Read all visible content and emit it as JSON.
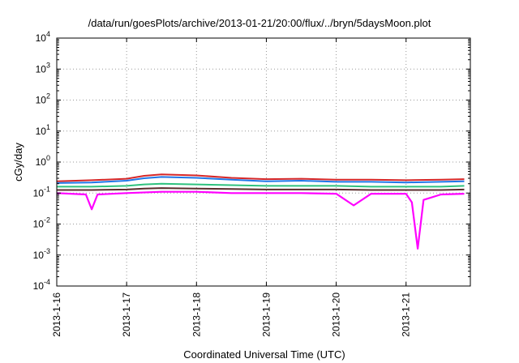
{
  "chart_data": {
    "type": "line",
    "title": "/data/run/goesPlots/archive/2013-01-21/20:00/flux/../bryn/5daysMoon.plot",
    "xlabel": "Coordinated Universal Time (UTC)",
    "ylabel": "cGy/day",
    "y_scale": "log",
    "ylim": [
      0.0001,
      10000
    ],
    "y_ticks": [
      {
        "value": 0.0001,
        "mantissa": "10",
        "exp": "-4"
      },
      {
        "value": 0.001,
        "mantissa": "10",
        "exp": "-3"
      },
      {
        "value": 0.01,
        "mantissa": "10",
        "exp": "-2"
      },
      {
        "value": 0.1,
        "mantissa": "10",
        "exp": "-1"
      },
      {
        "value": 1,
        "mantissa": "10",
        "exp": "0"
      },
      {
        "value": 10,
        "mantissa": "10",
        "exp": "1"
      },
      {
        "value": 100,
        "mantissa": "10",
        "exp": "2"
      },
      {
        "value": 1000,
        "mantissa": "10",
        "exp": "3"
      },
      {
        "value": 10000,
        "mantissa": "10",
        "exp": "4"
      }
    ],
    "xlim": [
      "2013-01-16",
      "2013-01-21 20:00"
    ],
    "x_ticks": [
      "2013-1-16",
      "2013-1-17",
      "2013-1-18",
      "2013-1-19",
      "2013-1-20",
      "2013-1-21"
    ],
    "grid": true,
    "series": [
      {
        "color": "#d62728",
        "x": [
          "2013-01-16 00:00",
          "2013-01-16 12:00",
          "2013-01-17 00:00",
          "2013-01-17 06:00",
          "2013-01-17 12:00",
          "2013-01-18 00:00",
          "2013-01-18 12:00",
          "2013-01-19 00:00",
          "2013-01-19 12:00",
          "2013-01-20 00:00",
          "2013-01-20 12:00",
          "2013-01-21 00:00",
          "2013-01-21 12:00",
          "2013-01-21 20:00"
        ],
        "values": [
          0.24,
          0.26,
          0.29,
          0.36,
          0.4,
          0.37,
          0.31,
          0.28,
          0.29,
          0.27,
          0.27,
          0.26,
          0.27,
          0.28
        ]
      },
      {
        "color": "#1f77e8",
        "x": [
          "2013-01-16 00:00",
          "2013-01-16 12:00",
          "2013-01-17 00:00",
          "2013-01-17 06:00",
          "2013-01-17 12:00",
          "2013-01-18 00:00",
          "2013-01-18 12:00",
          "2013-01-19 00:00",
          "2013-01-19 12:00",
          "2013-01-20 00:00",
          "2013-01-20 12:00",
          "2013-01-21 00:00",
          "2013-01-21 12:00",
          "2013-01-21 20:00"
        ],
        "values": [
          0.21,
          0.22,
          0.25,
          0.3,
          0.33,
          0.31,
          0.27,
          0.24,
          0.25,
          0.23,
          0.23,
          0.22,
          0.23,
          0.24
        ]
      },
      {
        "color": "#2ec27e",
        "x": [
          "2013-01-16 00:00",
          "2013-01-16 12:00",
          "2013-01-17 00:00",
          "2013-01-17 06:00",
          "2013-01-17 12:00",
          "2013-01-18 00:00",
          "2013-01-18 12:00",
          "2013-01-19 00:00",
          "2013-01-19 12:00",
          "2013-01-20 00:00",
          "2013-01-20 12:00",
          "2013-01-21 00:00",
          "2013-01-21 12:00",
          "2013-01-21 20:00"
        ],
        "values": [
          0.16,
          0.16,
          0.17,
          0.19,
          0.2,
          0.19,
          0.18,
          0.17,
          0.17,
          0.17,
          0.16,
          0.16,
          0.16,
          0.17
        ]
      },
      {
        "color": "#5a2d2d",
        "x": [
          "2013-01-16 00:00",
          "2013-01-16 12:00",
          "2013-01-17 00:00",
          "2013-01-17 06:00",
          "2013-01-17 12:00",
          "2013-01-18 00:00",
          "2013-01-18 12:00",
          "2013-01-19 00:00",
          "2013-01-19 12:00",
          "2013-01-20 00:00",
          "2013-01-20 12:00",
          "2013-01-21 00:00",
          "2013-01-21 12:00",
          "2013-01-21 20:00"
        ],
        "values": [
          0.125,
          0.125,
          0.13,
          0.14,
          0.145,
          0.14,
          0.135,
          0.13,
          0.13,
          0.13,
          0.125,
          0.125,
          0.125,
          0.13
        ]
      },
      {
        "color": "#ff00ff",
        "x": [
          "2013-01-16 00:00",
          "2013-01-16 10:00",
          "2013-01-16 12:00",
          "2013-01-16 14:00",
          "2013-01-17 00:00",
          "2013-01-17 12:00",
          "2013-01-18 00:00",
          "2013-01-18 12:00",
          "2013-01-19 00:00",
          "2013-01-19 12:00",
          "2013-01-20 00:00",
          "2013-01-20 06:00",
          "2013-01-20 12:00",
          "2013-01-21 00:00",
          "2013-01-21 02:00",
          "2013-01-21 04:00",
          "2013-01-21 06:00",
          "2013-01-21 12:00",
          "2013-01-21 20:00"
        ],
        "values": [
          0.1,
          0.09,
          0.03,
          0.09,
          0.1,
          0.11,
          0.11,
          0.1,
          0.1,
          0.1,
          0.095,
          0.04,
          0.095,
          0.095,
          0.05,
          0.0016,
          0.06,
          0.09,
          0.095
        ]
      }
    ]
  }
}
